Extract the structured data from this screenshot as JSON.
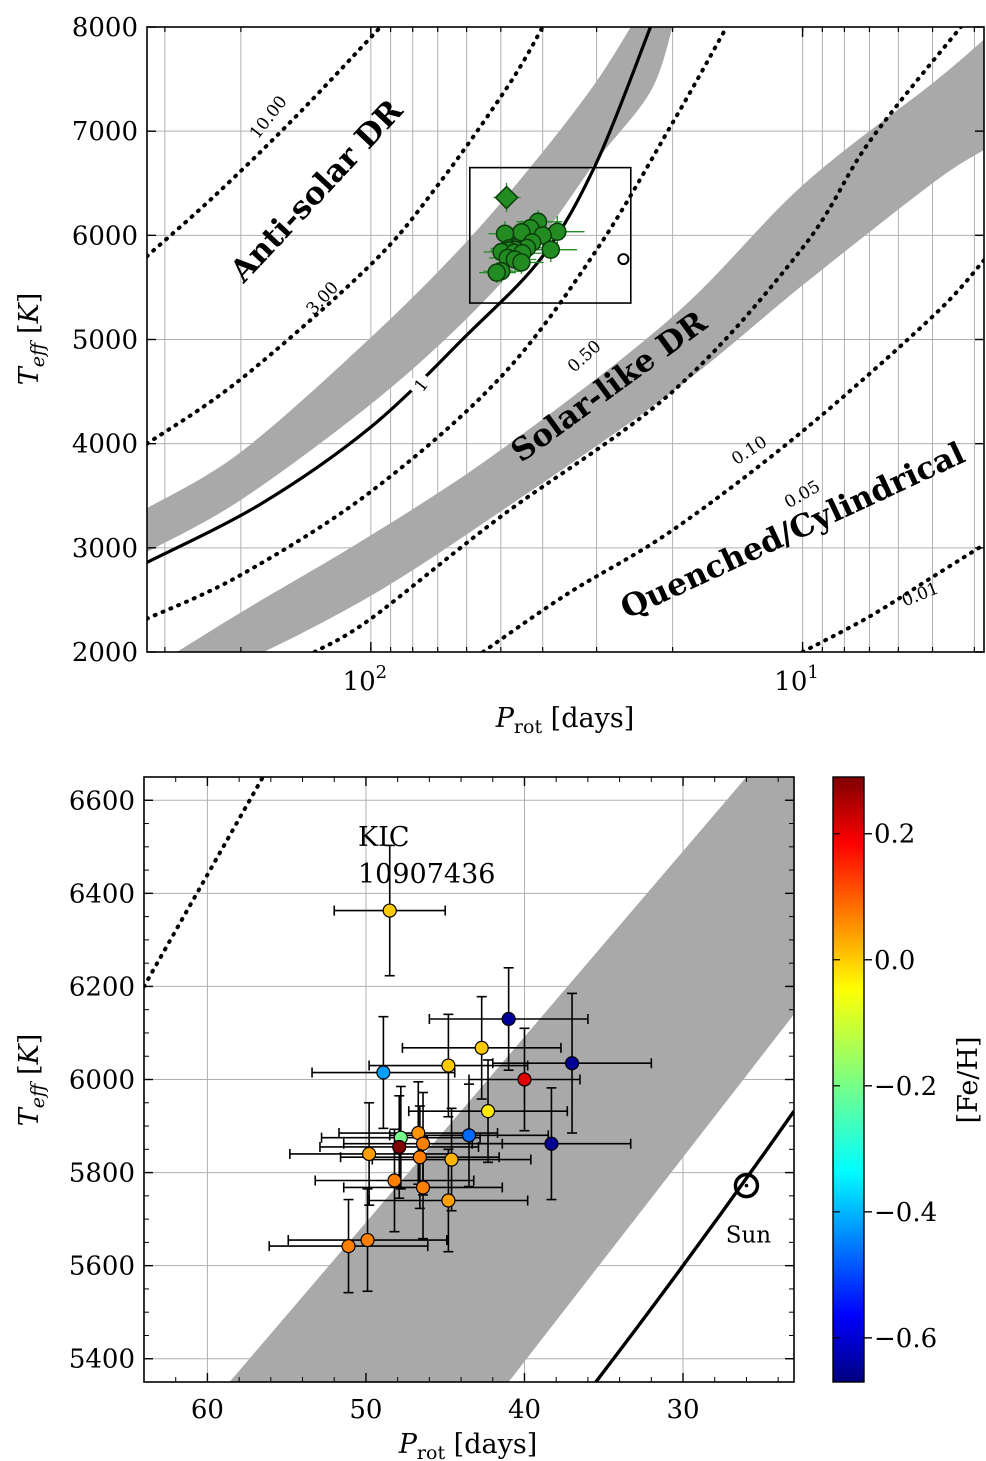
{
  "chart_data": [
    {
      "type": "line",
      "panel": "top",
      "xlabel": "P_rot [days]",
      "ylabel": "T_eff [K]",
      "xscale": "log",
      "x_inverted": true,
      "xlim": [
        330,
        3.8
      ],
      "ylim": [
        2000,
        8000
      ],
      "xticks": [
        {
          "value": 100,
          "label": "10²"
        },
        {
          "value": 10,
          "label": "10¹"
        }
      ],
      "yticks": [
        2000,
        3000,
        4000,
        5000,
        6000,
        7000,
        8000
      ],
      "grid": true,
      "region_labels": [
        "Anti-solar DR",
        "Solar-like DR",
        "Quenched/Cylindrical"
      ],
      "contours": [
        {
          "label": "10.00",
          "style": "dotted",
          "points": [
            [
              330,
              5800
            ],
            [
              230,
              6380
            ],
            [
              150,
              7130
            ],
            [
              95,
              8000
            ]
          ]
        },
        {
          "label": "3.00",
          "style": "dotted",
          "points": [
            [
              330,
              4000
            ],
            [
              200,
              4620
            ],
            [
              100,
              5720
            ],
            [
              70,
              6480
            ],
            [
              48,
              7440
            ],
            [
              40,
              8000
            ]
          ]
        },
        {
          "label": "1",
          "style": "solid",
          "points": [
            [
              330,
              2860
            ],
            [
              180,
              3420
            ],
            [
              100,
              4160
            ],
            [
              60,
              5040
            ],
            [
              40,
              5800
            ],
            [
              30,
              6700
            ],
            [
              22.5,
              8000
            ]
          ]
        },
        {
          "label": "0.50",
          "style": "dotted",
          "points": [
            [
              330,
              2320
            ],
            [
              200,
              2740
            ],
            [
              100,
              3540
            ],
            [
              50,
              4640
            ],
            [
              30,
              5860
            ],
            [
              20,
              7080
            ],
            [
              15,
              8000
            ]
          ]
        },
        {
          "label": "0.10",
          "style": "dotted",
          "points": [
            [
              135,
              2000
            ],
            [
              100,
              2320
            ],
            [
              50,
              3300
            ],
            [
              20,
              4500
            ],
            [
              10,
              5880
            ],
            [
              7,
              6900
            ],
            [
              4.3,
              8000
            ]
          ]
        },
        {
          "label": "0.05",
          "style": "dotted",
          "points": [
            [
              55,
              2000
            ],
            [
              35,
              2560
            ],
            [
              20,
              3170
            ],
            [
              10,
              4120
            ],
            [
              5,
              5220
            ],
            [
              3.8,
              5760
            ]
          ]
        },
        {
          "label": "0.01",
          "style": "dotted",
          "points": [
            [
              10,
              2000
            ],
            [
              7,
              2340
            ],
            [
              5,
              2720
            ],
            [
              3.8,
              3030
            ]
          ]
        }
      ],
      "bands": [
        {
          "points_upper": [
            [
              330,
              3380
            ],
            [
              200,
              3920
            ],
            [
              100,
              5020
            ],
            [
              60,
              5940
            ],
            [
              40,
              6800
            ],
            [
              30,
              7480
            ],
            [
              25,
              8000
            ]
          ],
          "points_lower": [
            [
              330,
              2960
            ],
            [
              200,
              3460
            ],
            [
              100,
              4380
            ],
            [
              60,
              5200
            ],
            [
              40,
              6000
            ],
            [
              30,
              6720
            ],
            [
              22.5,
              7380
            ],
            [
              20,
              8000
            ]
          ]
        },
        {
          "points_upper": [
            [
              330,
              1820
            ],
            [
              200,
              2380
            ],
            [
              100,
              3120
            ],
            [
              50,
              3940
            ],
            [
              20,
              5220
            ],
            [
              10,
              6480
            ],
            [
              5,
              7460
            ],
            [
              3.8,
              7880
            ]
          ],
          "points_lower": [
            [
              330,
              1580
            ],
            [
              200,
              1900
            ],
            [
              100,
              2540
            ],
            [
              50,
              3350
            ],
            [
              20,
              4500
            ],
            [
              10,
              5520
            ],
            [
              5,
              6500
            ],
            [
              3.8,
              6820
            ]
          ]
        }
      ],
      "zoom_box": {
        "x": [
          59,
          25
        ],
        "y": [
          5350,
          6650
        ]
      },
      "sun": {
        "x": 26,
        "y": 5772
      }
    },
    {
      "type": "scatter",
      "panel": "bottom",
      "xlabel": "P_rot [days]",
      "ylabel": "T_eff [K]",
      "colorbar_label": "[Fe/H]",
      "x_inverted": true,
      "xlim": [
        64,
        23
      ],
      "ylim": [
        5350,
        6650
      ],
      "xticks": [
        60,
        50,
        40,
        30
      ],
      "yticks": [
        5400,
        5600,
        5800,
        6000,
        6200,
        6400,
        6600
      ],
      "cbar_range": [
        -0.67,
        0.29
      ],
      "cbar_ticks": [
        "0.2",
        "0.0",
        "−0.2",
        "−0.4",
        "−0.6"
      ],
      "cbar_tick_values": [
        0.2,
        0.0,
        -0.2,
        -0.4,
        -0.6
      ],
      "grid": true,
      "annotation": {
        "text_line1": "KIC",
        "text_line2": "10907436"
      },
      "sun": {
        "x": 26,
        "y": 5772,
        "label": "Sun"
      },
      "band": {
        "lower": [
          [
            58.6,
            5350
          ],
          [
            26,
            6650
          ]
        ],
        "upper": [
          [
            41,
            5350
          ],
          [
            23,
            6140
          ]
        ]
      },
      "solid_curve": [
        [
          35.5,
          5350
        ],
        [
          23,
          5932
        ]
      ],
      "dotted_curve": [
        [
          64,
          6200
        ],
        [
          56.5,
          6650
        ]
      ],
      "points": [
        {
          "x": 48.5,
          "y": 6363,
          "xerr": 3.5,
          "yerr": 140,
          "feh": -0.02
        },
        {
          "x": 41.0,
          "y": 6130,
          "xerr": 5.0,
          "yerr": 110,
          "feh": -0.65
        },
        {
          "x": 42.7,
          "y": 6068,
          "xerr": 5.0,
          "yerr": 110,
          "feh": -0.02
        },
        {
          "x": 37.0,
          "y": 6035,
          "xerr": 5.0,
          "yerr": 150,
          "feh": -0.65
        },
        {
          "x": 44.8,
          "y": 6030,
          "xerr": 5.0,
          "yerr": 110,
          "feh": -0.02
        },
        {
          "x": 48.9,
          "y": 6015,
          "xerr": 4.5,
          "yerr": 120,
          "feh": -0.4
        },
        {
          "x": 40.0,
          "y": 6000,
          "xerr": 3.5,
          "yerr": 110,
          "feh": 0.2
        },
        {
          "x": 42.3,
          "y": 5932,
          "xerr": 5.0,
          "yerr": 110,
          "feh": -0.05
        },
        {
          "x": 43.5,
          "y": 5880,
          "xerr": 5.0,
          "yerr": 110,
          "feh": -0.45
        },
        {
          "x": 46.7,
          "y": 5885,
          "xerr": 5.0,
          "yerr": 110,
          "feh": 0.03
        },
        {
          "x": 47.8,
          "y": 5875,
          "xerr": 5.0,
          "yerr": 110,
          "feh": -0.2
        },
        {
          "x": 38.3,
          "y": 5862,
          "xerr": 5.0,
          "yerr": 120,
          "feh": -0.65
        },
        {
          "x": 46.4,
          "y": 5862,
          "xerr": 5.0,
          "yerr": 110,
          "feh": 0.05
        },
        {
          "x": 47.9,
          "y": 5855,
          "xerr": 5.0,
          "yerr": 110,
          "feh": 0.29
        },
        {
          "x": 49.8,
          "y": 5840,
          "xerr": 5.0,
          "yerr": 110,
          "feh": 0.02
        },
        {
          "x": 46.6,
          "y": 5833,
          "xerr": 5.0,
          "yerr": 110,
          "feh": 0.05
        },
        {
          "x": 44.6,
          "y": 5828,
          "xerr": 5.0,
          "yerr": 110,
          "feh": 0.0
        },
        {
          "x": 48.2,
          "y": 5783,
          "xerr": 5.0,
          "yerr": 110,
          "feh": 0.05
        },
        {
          "x": 46.4,
          "y": 5768,
          "xerr": 5.0,
          "yerr": 110,
          "feh": 0.05
        },
        {
          "x": 44.8,
          "y": 5740,
          "xerr": 5.0,
          "yerr": 110,
          "feh": 0.02
        },
        {
          "x": 49.9,
          "y": 5655,
          "xerr": 5.0,
          "yerr": 110,
          "feh": 0.05
        },
        {
          "x": 51.1,
          "y": 5642,
          "xerr": 5.0,
          "yerr": 100,
          "feh": 0.05
        }
      ]
    }
  ]
}
